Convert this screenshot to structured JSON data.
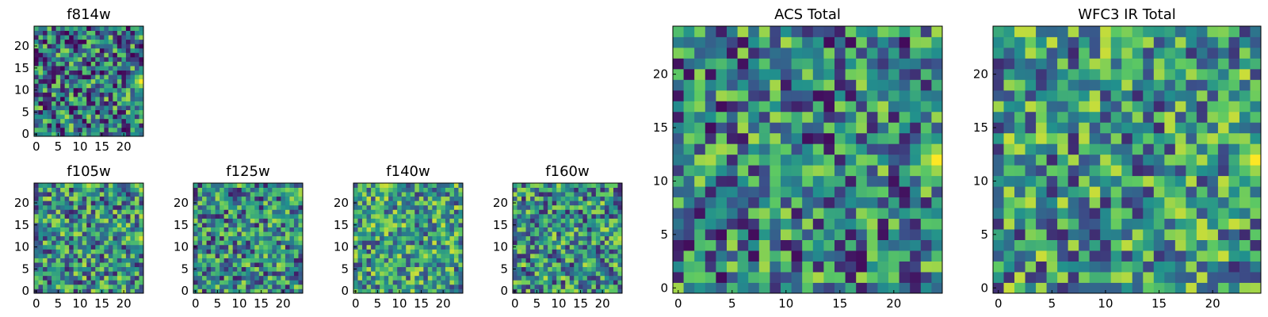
{
  "figure": {
    "background": "#ffffff",
    "colormap": [
      "#440154",
      "#3b528b",
      "#21908d",
      "#5dc963",
      "#fde725"
    ]
  },
  "chart_data": [
    {
      "id": "f814w",
      "type": "heatmap",
      "title": "f814w",
      "grid_size": [
        25,
        25
      ],
      "xlim": [
        0,
        24
      ],
      "ylim": [
        0,
        24
      ],
      "xticks": [
        0,
        5,
        10,
        15,
        20
      ],
      "yticks": [
        0,
        5,
        10,
        15,
        20
      ],
      "hotspots": [
        {
          "x": 24,
          "y": 12,
          "value": 1.0
        }
      ],
      "seed": 11,
      "base": 0.42,
      "noise": 0.45
    },
    {
      "id": "f105w",
      "type": "heatmap",
      "title": "f105w",
      "grid_size": [
        25,
        25
      ],
      "xlim": [
        0,
        24
      ],
      "ylim": [
        0,
        24
      ],
      "xticks": [
        0,
        5,
        10,
        15,
        20
      ],
      "yticks": [
        0,
        5,
        10,
        15,
        20
      ],
      "hotspots": [
        {
          "x": 24,
          "y": 12,
          "value": 0.95
        },
        {
          "x": 12,
          "y": 24,
          "value": 0.9
        }
      ],
      "seed": 23,
      "base": 0.5,
      "noise": 0.4
    },
    {
      "id": "f125w",
      "type": "heatmap",
      "title": "f125w",
      "grid_size": [
        25,
        25
      ],
      "xlim": [
        0,
        24
      ],
      "ylim": [
        0,
        24
      ],
      "xticks": [
        0,
        5,
        10,
        15,
        20
      ],
      "yticks": [
        0,
        5,
        10,
        15,
        20
      ],
      "hotspots": [
        {
          "x": 24,
          "y": 12,
          "value": 0.85
        },
        {
          "x": 16,
          "y": 10,
          "value": 0.75
        }
      ],
      "seed": 37,
      "base": 0.48,
      "noise": 0.4
    },
    {
      "id": "f140w",
      "type": "heatmap",
      "title": "f140w",
      "grid_size": [
        25,
        25
      ],
      "xlim": [
        0,
        24
      ],
      "ylim": [
        0,
        24
      ],
      "xticks": [
        0,
        5,
        10,
        15,
        20
      ],
      "yticks": [
        0,
        5,
        10,
        15,
        20
      ],
      "hotspots": [
        {
          "x": 16,
          "y": 8,
          "value": 0.85
        },
        {
          "x": 8,
          "y": 24,
          "value": 0.85
        }
      ],
      "seed": 41,
      "base": 0.55,
      "noise": 0.38
    },
    {
      "id": "f160w",
      "type": "heatmap",
      "title": "f160w",
      "grid_size": [
        25,
        25
      ],
      "xlim": [
        0,
        24
      ],
      "ylim": [
        0,
        24
      ],
      "xticks": [
        0,
        5,
        10,
        15,
        20
      ],
      "yticks": [
        0,
        5,
        10,
        15,
        20
      ],
      "hotspots": [
        {
          "x": 24,
          "y": 12,
          "value": 0.9
        },
        {
          "x": 17,
          "y": 6,
          "value": 0.8
        }
      ],
      "seed": 53,
      "base": 0.5,
      "noise": 0.4
    },
    {
      "id": "acs_total",
      "type": "heatmap",
      "title": "ACS Total",
      "grid_size": [
        25,
        25
      ],
      "xlim": [
        0,
        24
      ],
      "ylim": [
        0,
        24
      ],
      "xticks": [
        0,
        5,
        10,
        15,
        20
      ],
      "yticks": [
        0,
        5,
        10,
        15,
        20
      ],
      "hotspots": [
        {
          "x": 24,
          "y": 12,
          "value": 1.0
        }
      ],
      "seed": 67,
      "base": 0.45,
      "noise": 0.42
    },
    {
      "id": "wfc3_ir_total",
      "type": "heatmap",
      "title": "WFC3 IR Total",
      "grid_size": [
        25,
        25
      ],
      "xlim": [
        0,
        24
      ],
      "ylim": [
        0,
        24
      ],
      "xticks": [
        0,
        5,
        10,
        15,
        20
      ],
      "yticks": [
        0,
        5,
        10,
        15,
        20
      ],
      "hotspots": [
        {
          "x": 24,
          "y": 12,
          "value": 1.0
        },
        {
          "x": 12,
          "y": 24,
          "value": 0.8
        }
      ],
      "seed": 79,
      "base": 0.52,
      "noise": 0.4
    }
  ]
}
